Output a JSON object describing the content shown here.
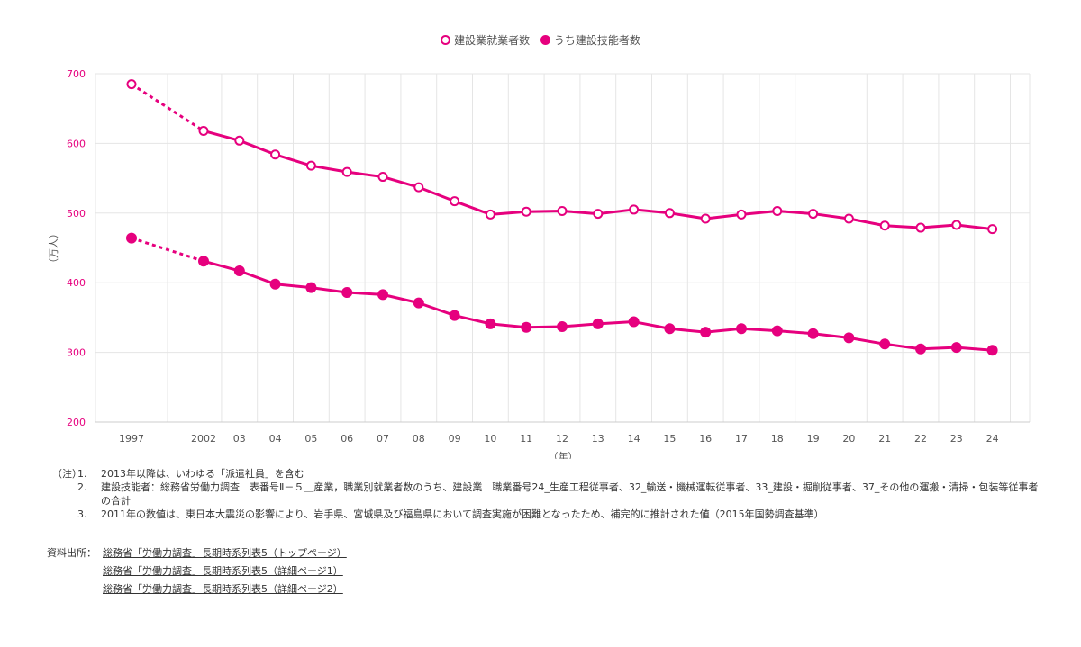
{
  "chart_data": {
    "type": "line",
    "title": "",
    "xlabel": "（年）",
    "ylabel": "（万人）",
    "ylim": [
      200,
      700
    ],
    "yticks": [
      200,
      300,
      400,
      500,
      600,
      700
    ],
    "categories": [
      "1997",
      "2002",
      "03",
      "04",
      "05",
      "06",
      "07",
      "08",
      "09",
      "10",
      "11",
      "12",
      "13",
      "14",
      "15",
      "16",
      "17",
      "18",
      "19",
      "20",
      "21",
      "22",
      "23",
      "24"
    ],
    "x": [
      1997,
      2002,
      2003,
      2004,
      2005,
      2006,
      2007,
      2008,
      2009,
      2010,
      2011,
      2012,
      2013,
      2014,
      2015,
      2016,
      2017,
      2018,
      2019,
      2020,
      2021,
      2022,
      2023,
      2024
    ],
    "series": [
      {
        "name": "建設業就業者数",
        "marker": "hollow",
        "values": [
          685,
          618,
          604,
          584,
          568,
          559,
          552,
          537,
          517,
          498,
          502,
          503,
          499,
          505,
          500,
          492,
          498,
          503,
          499,
          492,
          482,
          479,
          483,
          477
        ]
      },
      {
        "name": "うち建設技能者数",
        "marker": "filled",
        "values": [
          464,
          431,
          417,
          398,
          393,
          386,
          383,
          371,
          353,
          341,
          336,
          337,
          341,
          344,
          334,
          329,
          334,
          331,
          327,
          321,
          312,
          305,
          307,
          303
        ]
      }
    ],
    "dashed_segment": "1997–2002",
    "grid": true,
    "legend": "top-center",
    "colors": {
      "line": "#e6007e",
      "axis_text": "#e6007e",
      "grid": "#e5e5e5",
      "tick_text": "#555555"
    }
  },
  "notes": {
    "prefix": "（注）",
    "items": [
      {
        "num": "1.",
        "text": "2013年以降は、いわゆる「派遣社員」を含む"
      },
      {
        "num": "2.",
        "text": "建設技能者：総務省労働力調査　表番号Ⅱ－５＿産業，職業別就業者数のうち、建設業　職業番号24_生産工程従事者、32_輸送・機械運転従事者、33_建設・掘削従事者、37_その他の運搬・清掃・包装等従事者の合計"
      },
      {
        "num": "3.",
        "text": "2011年の数値は、東日本大震災の影響により、岩手県、宮城県及び福島県において調査実施が困難となったため、補完的に推計された値（2015年国勢調査基準）"
      }
    ]
  },
  "sources": {
    "label": "資料出所：",
    "links": [
      "総務省「労働力調査」長期時系列表5（トップページ）",
      "総務省「労働力調査」長期時系列表5（詳細ページ1）",
      "総務省「労働力調査」長期時系列表5（詳細ページ2）"
    ]
  }
}
